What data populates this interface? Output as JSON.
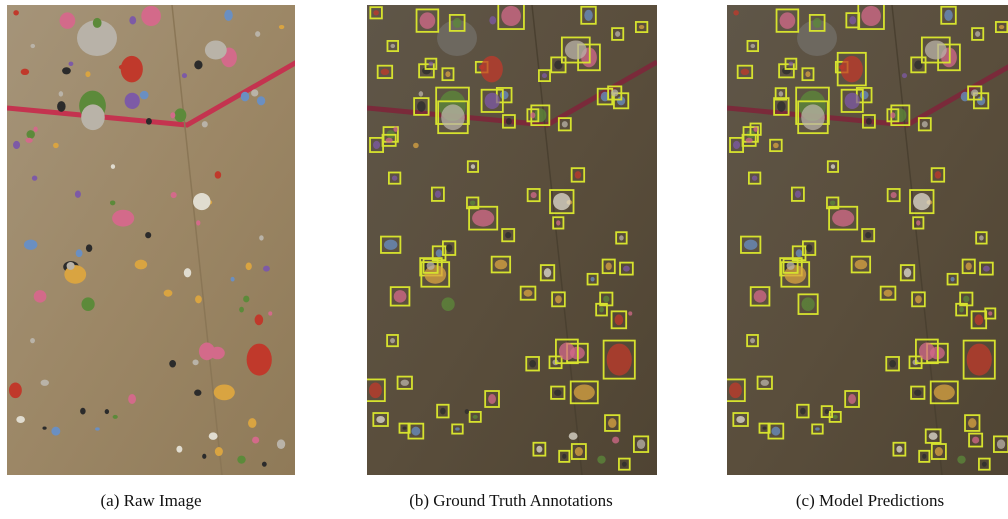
{
  "figure": {
    "panels": [
      {
        "caption": "(a) Raw Image"
      },
      {
        "caption": "(b) Ground Truth Annotations"
      },
      {
        "caption": "(c) Model Predictions"
      }
    ]
  }
}
